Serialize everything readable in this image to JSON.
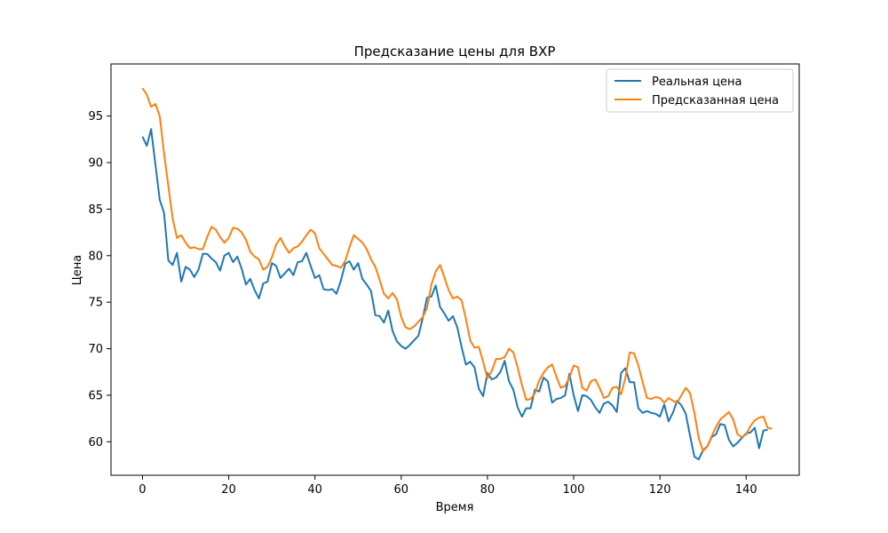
{
  "chart_data": {
    "type": "line",
    "title": "Предсказание цены для BXP",
    "xlabel": "Время",
    "ylabel": "Цена",
    "xlim": [
      -7.3,
      152.3
    ],
    "ylim": [
      56.4,
      100.6
    ],
    "xticks": [
      0,
      20,
      40,
      60,
      80,
      100,
      120,
      140
    ],
    "yticks": [
      60,
      65,
      70,
      75,
      80,
      85,
      90,
      95
    ],
    "grid": false,
    "legend_position": "top-right",
    "series": [
      {
        "name": "Реальная цена",
        "color": "#1f77b4",
        "values": [
          92.8,
          91.8,
          93.6,
          89.8,
          86.0,
          84.6,
          79.5,
          79.0,
          80.3,
          77.2,
          78.8,
          78.5,
          77.7,
          78.5,
          80.2,
          80.2,
          79.7,
          79.3,
          78.4,
          80.0,
          80.3,
          79.3,
          79.9,
          78.6,
          76.9,
          77.5,
          76.3,
          75.4,
          77.0,
          77.2,
          79.2,
          78.9,
          77.6,
          78.1,
          78.6,
          77.9,
          79.3,
          79.4,
          80.3,
          78.9,
          77.6,
          77.9,
          76.4,
          76.3,
          76.4,
          75.9,
          77.3,
          79.1,
          79.4,
          78.5,
          79.2,
          77.5,
          76.9,
          76.2,
          73.6,
          73.5,
          72.8,
          74.1,
          71.9,
          70.8,
          70.3,
          70.0,
          70.4,
          70.9,
          71.4,
          73.3,
          75.5,
          75.6,
          76.8,
          74.5,
          73.8,
          73.0,
          73.5,
          72.3,
          70.2,
          68.3,
          68.6,
          68.0,
          65.7,
          64.9,
          67.4,
          66.7,
          66.9,
          67.5,
          68.7,
          66.5,
          65.6,
          63.7,
          62.7,
          63.6,
          63.6,
          65.6,
          65.4,
          66.9,
          66.5,
          64.2,
          64.6,
          64.7,
          65.0,
          67.3,
          65.0,
          63.3,
          65.0,
          64.9,
          64.5,
          63.7,
          63.1,
          64.1,
          64.3,
          63.9,
          63.2,
          67.4,
          67.9,
          66.4,
          66.4,
          63.6,
          63.1,
          63.3,
          63.1,
          63.0,
          62.7,
          64.0,
          62.2,
          63.1,
          64.4,
          63.9,
          63.0,
          60.6,
          58.4,
          58.1,
          59.1,
          59.5,
          60.5,
          60.8,
          61.9,
          61.8,
          60.2,
          59.5,
          59.9,
          60.4,
          60.9,
          61.0,
          61.5,
          59.3,
          61.2,
          61.3
        ]
      },
      {
        "name": "Предсказанная цена",
        "color": "#ff7f0e",
        "values": [
          98.0,
          97.3,
          96.0,
          96.3,
          95.0,
          91.0,
          87.5,
          84.0,
          81.9,
          82.2,
          81.4,
          80.8,
          80.9,
          80.7,
          80.7,
          82.0,
          83.1,
          82.8,
          82.0,
          81.4,
          81.9,
          83.0,
          82.9,
          82.5,
          81.7,
          80.4,
          79.9,
          79.6,
          78.5,
          78.8,
          79.8,
          81.2,
          81.9,
          81.0,
          80.3,
          80.8,
          81.0,
          81.5,
          82.2,
          82.8,
          82.4,
          80.8,
          80.2,
          79.6,
          79.0,
          78.9,
          78.7,
          79.4,
          80.9,
          82.2,
          81.8,
          81.4,
          80.7,
          79.6,
          78.8,
          77.4,
          75.9,
          75.4,
          76.0,
          75.3,
          73.4,
          72.3,
          72.1,
          72.4,
          72.9,
          73.4,
          74.4,
          76.9,
          78.3,
          79.0,
          77.7,
          76.3,
          75.4,
          75.6,
          75.2,
          73.2,
          70.9,
          70.1,
          70.2,
          68.6,
          66.8,
          67.6,
          68.9,
          68.9,
          69.1,
          70.0,
          69.6,
          68.0,
          66.1,
          64.5,
          64.6,
          65.2,
          66.6,
          67.4,
          68.0,
          68.3,
          67.0,
          65.8,
          66.0,
          66.9,
          68.2,
          68.0,
          65.8,
          65.5,
          66.5,
          66.7,
          65.8,
          64.7,
          64.9,
          65.8,
          65.9,
          65.1,
          66.9,
          69.6,
          69.5,
          68.2,
          66.4,
          64.7,
          64.6,
          64.8,
          64.7,
          64.2,
          64.7,
          64.4,
          64.2,
          65.0,
          65.8,
          65.2,
          63.1,
          60.4,
          59.0,
          59.5,
          60.6,
          61.6,
          62.4,
          62.8,
          63.2,
          62.4,
          60.8,
          60.5,
          60.8,
          61.7,
          62.3,
          62.6,
          62.7,
          61.5,
          61.4
        ]
      }
    ]
  }
}
